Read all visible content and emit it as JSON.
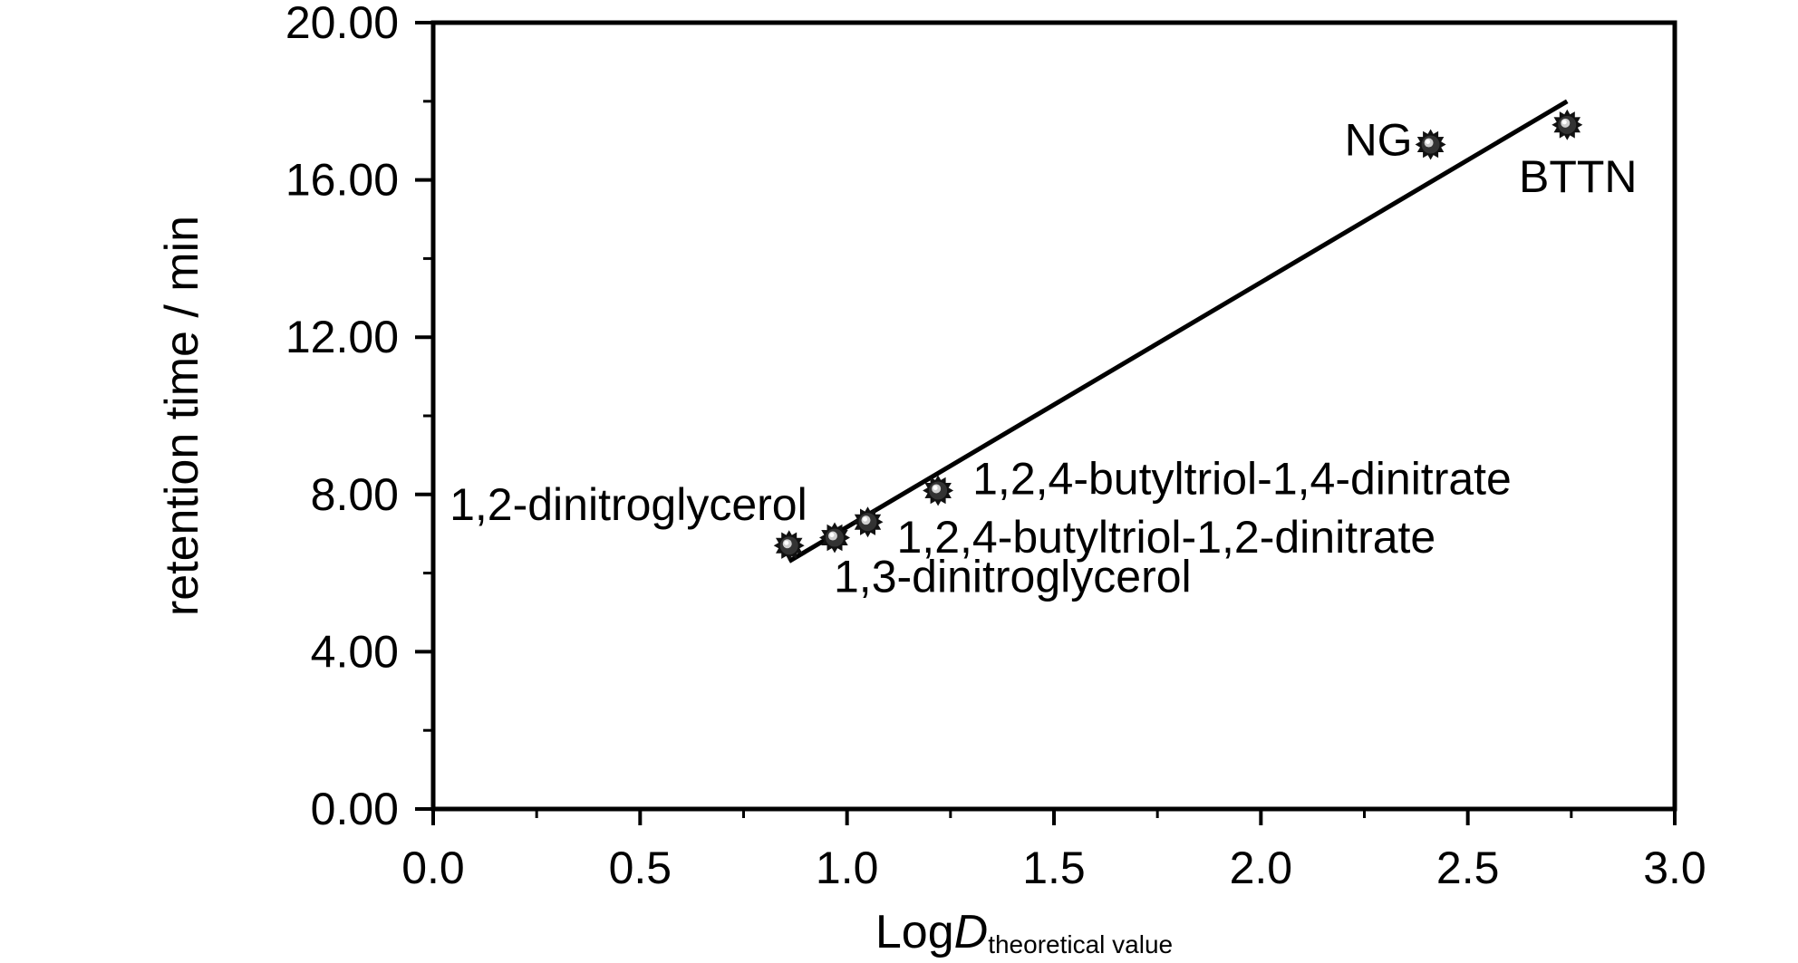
{
  "chart_data": {
    "type": "scatter",
    "title": "",
    "xlabel_main": "Log",
    "xlabel_italic": "D",
    "xlabel_sub": "theoretical value",
    "ylabel": "retention time / min",
    "xlim": [
      0.0,
      3.0
    ],
    "ylim": [
      0.0,
      20.0
    ],
    "x_ticks": [
      "0.0",
      "0.5",
      "1.0",
      "1.5",
      "2.0",
      "2.5",
      "3.0"
    ],
    "y_ticks": [
      "0.00",
      "4.00",
      "8.00",
      "12.00",
      "16.00",
      "20.00"
    ],
    "grid": false,
    "points": [
      {
        "label": "1,2-dinitroglycerol",
        "x": 0.86,
        "y": 6.7
      },
      {
        "label": "1,3-dinitroglycerol",
        "x": 0.97,
        "y": 6.9
      },
      {
        "label": "1,2,4-butyltriol-1,2-dinitrate",
        "x": 1.05,
        "y": 7.3
      },
      {
        "label": "1,2,4-butyltriol-1,4-dinitrate",
        "x": 1.22,
        "y": 8.1
      },
      {
        "label": "NG",
        "x": 2.41,
        "y": 16.9
      },
      {
        "label": "BTTN",
        "x": 2.74,
        "y": 17.4
      }
    ],
    "fit_line": {
      "x": [
        0.86,
        2.74
      ],
      "y": [
        6.3,
        18.0
      ]
    }
  }
}
